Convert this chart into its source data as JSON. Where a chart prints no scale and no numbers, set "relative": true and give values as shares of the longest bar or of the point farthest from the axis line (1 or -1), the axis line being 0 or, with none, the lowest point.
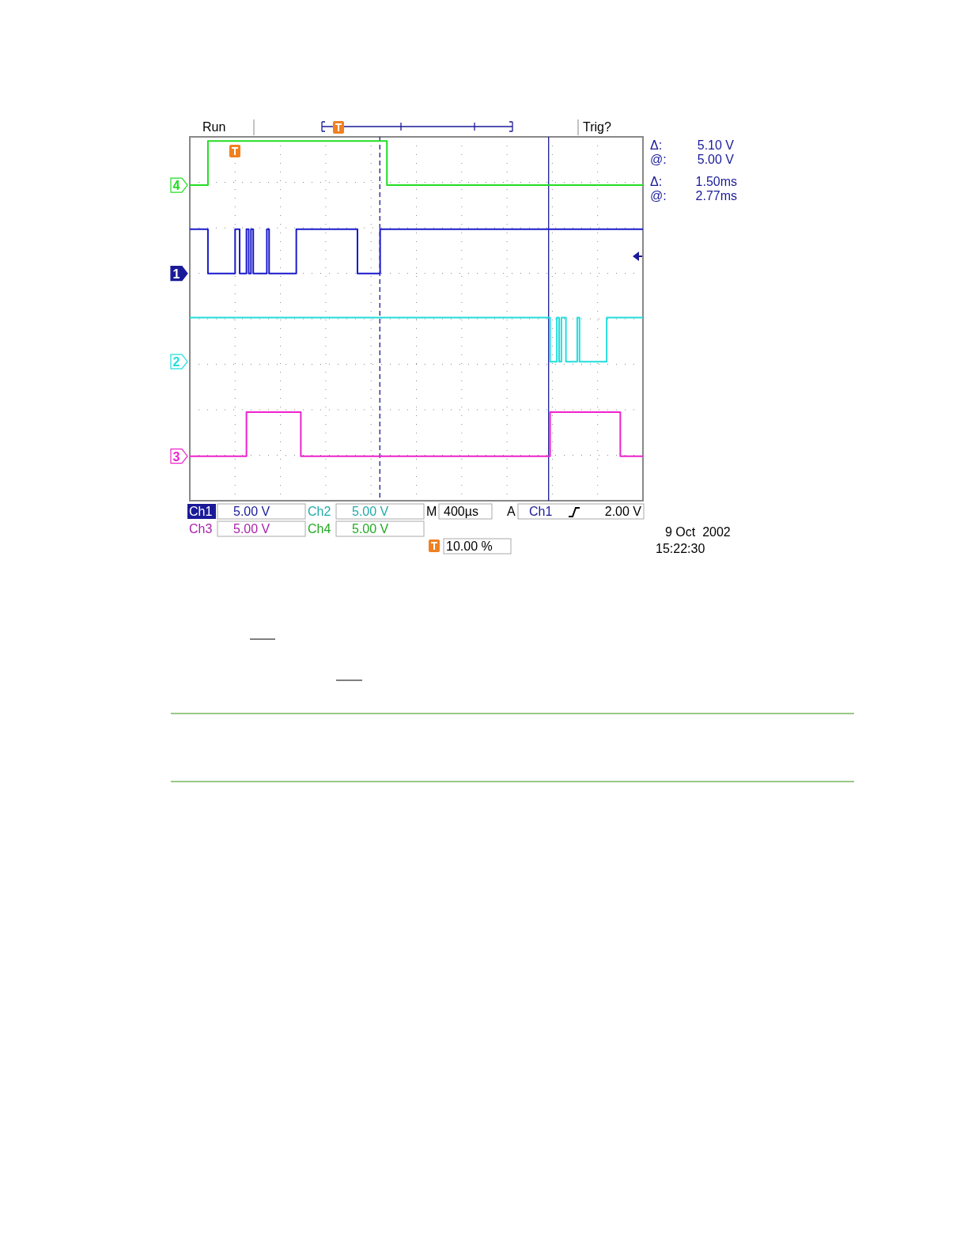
{
  "chart_data": {
    "type": "step",
    "relative": true,
    "grid": true,
    "line_style": "solid",
    "categories": [
      null,
      null,
      null,
      null,
      null,
      null,
      null,
      null,
      null,
      null,
      null,
      null,
      null,
      null,
      null,
      null,
      null,
      null,
      null,
      null,
      null,
      null,
      null,
      null,
      null,
      null,
      null,
      null,
      null,
      null,
      null,
      null,
      null,
      null,
      null,
      null,
      null,
      null,
      null,
      null,
      null,
      null,
      null,
      null,
      null,
      null,
      null,
      null,
      null,
      null,
      null,
      null,
      null,
      null,
      null,
      null,
      null,
      null,
      null,
      null,
      null,
      null,
      null,
      null,
      null,
      null,
      null,
      null,
      null,
      null,
      null,
      null,
      null,
      null,
      null,
      null,
      null,
      null,
      null,
      null,
      null,
      null,
      null,
      null,
      null,
      null,
      null,
      null,
      null,
      null,
      null,
      null,
      null,
      null,
      null,
      null,
      null,
      null,
      null,
      null,
      null,
      null,
      null,
      null,
      null,
      null,
      null,
      null,
      null,
      null,
      null,
      null,
      null,
      null,
      null,
      null,
      null,
      null,
      null,
      null,
      null,
      null,
      null,
      null,
      null,
      null,
      null,
      null,
      null,
      null,
      null,
      null,
      null,
      null,
      null,
      null,
      null,
      null,
      null,
      null,
      null,
      null,
      null,
      null,
      null,
      null,
      null,
      null,
      null,
      null,
      null,
      null,
      null,
      null,
      null,
      null,
      null,
      null,
      null,
      null,
      null,
      null,
      null,
      null,
      null,
      null,
      null,
      null,
      null,
      null,
      null,
      null,
      null,
      null,
      null,
      null,
      null,
      null,
      null,
      null,
      null,
      null,
      null,
      null,
      null,
      null,
      null,
      null,
      null,
      null,
      null,
      null,
      null,
      null,
      null,
      null,
      null,
      null,
      null,
      null
    ],
    "series": [
      {
        "name": "4",
        "color": "#22dd22",
        "values": [
          0.86,
          0.86,
          0.86,
          0.86,
          0.86,
          0.86,
          0.86,
          0.86,
          1,
          1,
          1,
          1,
          1,
          1,
          1,
          1,
          1,
          1,
          1,
          1,
          1,
          1,
          1,
          1,
          1,
          1,
          1,
          1,
          1,
          1,
          1,
          1,
          1,
          1,
          1,
          1,
          1,
          1,
          1,
          1,
          1,
          1,
          1,
          1,
          1,
          1,
          1,
          1,
          1,
          1,
          1,
          1,
          1,
          1,
          1,
          1,
          1,
          1,
          1,
          1,
          1,
          1,
          1,
          1,
          1,
          1,
          1,
          1,
          1,
          1,
          1,
          1,
          1,
          1,
          1,
          1,
          1,
          1,
          1,
          1,
          1,
          1,
          1,
          1,
          1,
          1,
          1,
          0.86,
          0.86,
          0.86,
          0.86,
          0.86,
          0.86,
          0.86,
          0.86,
          0.86,
          0.86,
          0.86,
          0.86,
          0.86,
          0.86,
          0.86,
          0.86,
          0.86,
          0.86,
          0.86,
          0.86,
          0.86,
          0.86,
          0.86,
          0.86,
          0.86,
          0.86,
          0.86,
          0.86,
          0.86,
          0.86,
          0.86,
          0.86,
          0.86,
          0.86,
          0.86,
          0.86,
          0.86,
          0.86,
          0.86,
          0.86,
          0.86,
          0.86,
          0.86,
          0.86,
          0.86,
          0.86,
          0.86,
          0.86,
          0.86,
          0.86,
          0.86,
          0.86,
          0.86,
          0.86,
          0.86,
          0.86,
          0.86,
          0.86,
          0.86,
          0.86,
          0.86,
          0.86,
          0.86,
          0.86,
          0.86,
          0.86,
          0.86,
          0.86,
          0.86,
          0.86,
          0.86,
          0.86,
          0.86,
          0.86,
          0.86,
          0.86,
          0.86,
          0.86,
          0.86,
          0.86,
          0.86,
          0.86,
          0.86,
          0.86,
          0.86,
          0.86,
          0.86,
          0.86,
          0.86,
          0.86,
          0.86,
          0.86,
          0.86,
          0.86,
          0.86,
          0.86,
          0.86,
          0.86,
          0.86,
          0.86,
          0.86,
          0.86,
          0.86,
          0.86,
          0.86,
          0.86,
          0.86,
          0.86,
          0.86,
          0.86,
          0.86,
          0.86,
          0.86
        ]
      },
      {
        "name": "1",
        "color": "#1a1acc",
        "values": [
          0.72,
          0.72,
          0.72,
          0.72,
          0.72,
          0.72,
          0.72,
          0.72,
          0.58,
          0.58,
          0.58,
          0.58,
          0.58,
          0.58,
          0.58,
          0.58,
          0.58,
          0.58,
          0.58,
          0.58,
          0.72,
          0.72,
          0.58,
          0.58,
          0.58,
          0.72,
          0.58,
          0.72,
          0.58,
          0.58,
          0.58,
          0.58,
          0.58,
          0.58,
          0.72,
          0.58,
          0.58,
          0.58,
          0.58,
          0.58,
          0.58,
          0.58,
          0.58,
          0.58,
          0.58,
          0.58,
          0.58,
          0.72,
          0.72,
          0.72,
          0.72,
          0.72,
          0.72,
          0.72,
          0.72,
          0.72,
          0.72,
          0.72,
          0.72,
          0.72,
          0.72,
          0.72,
          0.72,
          0.72,
          0.72,
          0.72,
          0.72,
          0.72,
          0.72,
          0.72,
          0.72,
          0.72,
          0.72,
          0.72,
          0.58,
          0.58,
          0.58,
          0.58,
          0.58,
          0.58,
          0.58,
          0.58,
          0.58,
          0.58,
          0.72,
          0.72,
          0.72,
          0.72,
          0.72,
          0.72,
          0.72,
          0.72,
          0.72,
          0.72,
          0.72,
          0.72,
          0.72,
          0.72,
          0.72,
          0.72,
          0.72,
          0.72,
          0.72,
          0.72,
          0.72,
          0.72,
          0.72,
          0.72,
          0.72,
          0.72,
          0.72,
          0.72,
          0.72,
          0.72,
          0.72,
          0.72,
          0.72,
          0.72,
          0.72,
          0.72,
          0.72,
          0.72,
          0.72,
          0.72,
          0.72,
          0.72,
          0.72,
          0.72,
          0.72,
          0.72,
          0.72,
          0.72,
          0.72,
          0.72,
          0.72,
          0.72,
          0.72,
          0.72,
          0.72,
          0.72,
          0.72,
          0.72,
          0.72,
          0.72,
          0.72,
          0.72,
          0.72,
          0.72,
          0.72,
          0.72,
          0.72,
          0.72,
          0.72,
          0.72,
          0.72,
          0.72,
          0.72,
          0.72,
          0.72,
          0.72,
          0.72,
          0.72,
          0.72,
          0.72,
          0.72,
          0.72,
          0.72,
          0.72,
          0.72,
          0.72,
          0.72,
          0.72,
          0.72,
          0.72,
          0.72,
          0.72,
          0.72,
          0.72,
          0.72,
          0.72,
          0.72,
          0.72,
          0.72,
          0.72,
          0.72,
          0.72,
          0.72,
          0.72,
          0.72,
          0.72,
          0.72,
          0.72,
          0.72,
          0.72,
          0.72,
          0.72,
          0.72,
          0.72,
          0.72,
          0.72
        ]
      },
      {
        "name": "2",
        "color": "#22dddd",
        "values": [
          0.44,
          0.44,
          0.44,
          0.44,
          0.44,
          0.44,
          0.44,
          0.44,
          0.44,
          0.44,
          0.44,
          0.44,
          0.44,
          0.44,
          0.44,
          0.44,
          0.44,
          0.44,
          0.44,
          0.44,
          0.44,
          0.44,
          0.44,
          0.44,
          0.44,
          0.44,
          0.44,
          0.44,
          0.44,
          0.44,
          0.44,
          0.44,
          0.44,
          0.44,
          0.44,
          0.44,
          0.44,
          0.44,
          0.44,
          0.44,
          0.44,
          0.44,
          0.44,
          0.44,
          0.44,
          0.44,
          0.44,
          0.44,
          0.44,
          0.44,
          0.44,
          0.44,
          0.44,
          0.44,
          0.44,
          0.44,
          0.44,
          0.44,
          0.44,
          0.44,
          0.44,
          0.44,
          0.44,
          0.44,
          0.44,
          0.44,
          0.44,
          0.44,
          0.44,
          0.44,
          0.44,
          0.44,
          0.44,
          0.44,
          0.44,
          0.44,
          0.44,
          0.44,
          0.44,
          0.44,
          0.44,
          0.44,
          0.44,
          0.44,
          0.44,
          0.44,
          0.44,
          0.44,
          0.44,
          0.44,
          0.44,
          0.44,
          0.44,
          0.44,
          0.44,
          0.44,
          0.44,
          0.44,
          0.44,
          0.44,
          0.44,
          0.44,
          0.44,
          0.44,
          0.44,
          0.44,
          0.44,
          0.44,
          0.44,
          0.44,
          0.44,
          0.44,
          0.44,
          0.44,
          0.44,
          0.44,
          0.44,
          0.44,
          0.44,
          0.44,
          0.44,
          0.44,
          0.44,
          0.44,
          0.44,
          0.44,
          0.44,
          0.44,
          0.44,
          0.44,
          0.44,
          0.44,
          0.44,
          0.44,
          0.44,
          0.44,
          0.44,
          0.44,
          0.44,
          0.44,
          0.44,
          0.44,
          0.44,
          0.44,
          0.44,
          0.44,
          0.44,
          0.44,
          0.44,
          0.44,
          0.44,
          0.44,
          0.44,
          0.44,
          0.44,
          0.44,
          0.44,
          0.44,
          0.44,
          0.3,
          0.3,
          0.3,
          0.44,
          0.3,
          0.44,
          0.44,
          0.3,
          0.3,
          0.3,
          0.3,
          0.3,
          0.44,
          0.3,
          0.3,
          0.3,
          0.3,
          0.3,
          0.3,
          0.3,
          0.3,
          0.3,
          0.3,
          0.3,
          0.3,
          0.44,
          0.44,
          0.44,
          0.44,
          0.44,
          0.44,
          0.44,
          0.44,
          0.44,
          0.44,
          0.44,
          0.44,
          0.44,
          0.44,
          0.44,
          0.44
        ]
      },
      {
        "name": "3",
        "color": "#ee22cc",
        "values": [
          0,
          0,
          0,
          0,
          0,
          0,
          0,
          0,
          0,
          0,
          0,
          0,
          0,
          0,
          0,
          0,
          0,
          0,
          0,
          0,
          0,
          0,
          0,
          0,
          0,
          0.14,
          0.14,
          0.14,
          0.14,
          0.14,
          0.14,
          0.14,
          0.14,
          0.14,
          0.14,
          0.14,
          0.14,
          0.14,
          0.14,
          0.14,
          0.14,
          0.14,
          0.14,
          0.14,
          0.14,
          0.14,
          0.14,
          0.14,
          0.14,
          0,
          0,
          0,
          0,
          0,
          0,
          0,
          0,
          0,
          0,
          0,
          0,
          0,
          0,
          0,
          0,
          0,
          0,
          0,
          0,
          0,
          0,
          0,
          0,
          0,
          0,
          0,
          0,
          0,
          0,
          0,
          0,
          0,
          0,
          0,
          0,
          0,
          0,
          0,
          0,
          0,
          0,
          0,
          0,
          0,
          0,
          0,
          0,
          0,
          0,
          0,
          0,
          0,
          0,
          0,
          0,
          0,
          0,
          0,
          0,
          0,
          0,
          0,
          0,
          0,
          0,
          0,
          0,
          0,
          0,
          0,
          0,
          0,
          0,
          0,
          0,
          0,
          0,
          0,
          0,
          0,
          0,
          0,
          0,
          0,
          0,
          0,
          0,
          0,
          0,
          0,
          0,
          0,
          0,
          0,
          0,
          0,
          0,
          0,
          0,
          0,
          0,
          0,
          0,
          0,
          0,
          0,
          0,
          0,
          0,
          0.14,
          0.14,
          0.14,
          0.14,
          0.14,
          0.14,
          0.14,
          0.14,
          0.14,
          0.14,
          0.14,
          0.14,
          0.14,
          0.14,
          0.14,
          0.14,
          0.14,
          0.14,
          0.14,
          0.14,
          0.14,
          0.14,
          0.14,
          0.14,
          0.14,
          0.14,
          0.14,
          0.14,
          0.14,
          0.14,
          0.14,
          0,
          0,
          0,
          0,
          0,
          0,
          0,
          0,
          0,
          0
        ]
      }
    ],
    "annotations": [
      "Run",
      "Trig?",
      "Δ:",
      "5.10 V",
      "@:",
      "5.00 V",
      "Δ:",
      "1.50ms",
      "@:",
      "2.77ms",
      "Ch1",
      "5.00 V",
      "Ch2",
      "5.00 V",
      "M",
      "400µs",
      "A",
      "Ch1",
      "2.00 V",
      "Ch3",
      "5.00 V",
      "Ch4",
      "5.00 V",
      "10.00 %",
      "9 Oct  2002",
      "15:22:30"
    ]
  }
}
